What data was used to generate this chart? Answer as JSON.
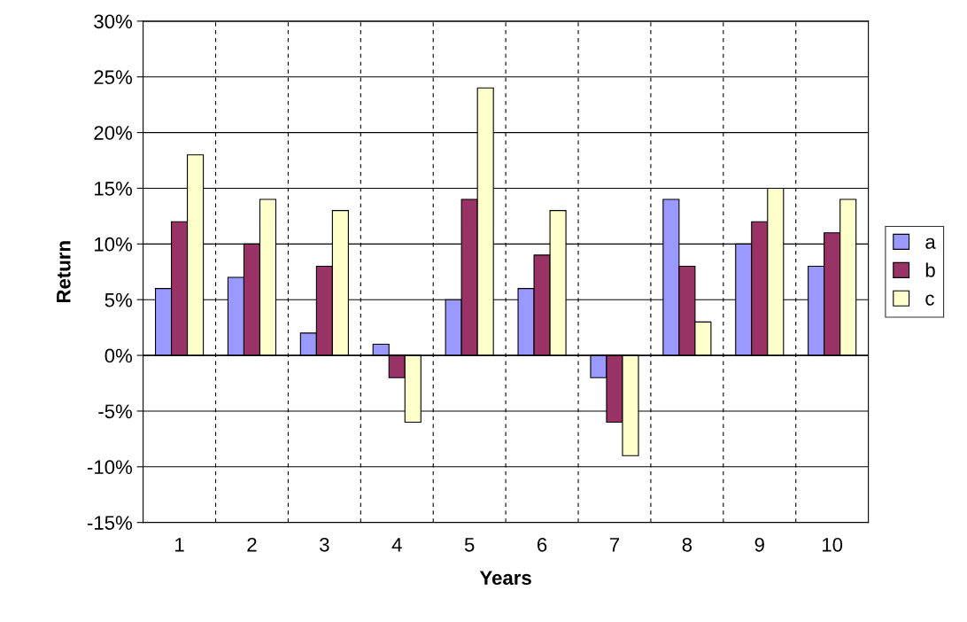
{
  "chart_data": {
    "type": "bar",
    "xlabel": "Years",
    "ylabel": "Return",
    "categories": [
      "1",
      "2",
      "3",
      "4",
      "5",
      "6",
      "7",
      "8",
      "9",
      "10"
    ],
    "series": [
      {
        "name": "a",
        "color": "#9999ff",
        "values": [
          6,
          7,
          2,
          1,
          5,
          6,
          -2,
          14,
          10,
          8
        ]
      },
      {
        "name": "b",
        "color": "#993366",
        "values": [
          12,
          10,
          8,
          -2,
          14,
          9,
          -6,
          8,
          12,
          11
        ]
      },
      {
        "name": "c",
        "color": "#ffffcc",
        "values": [
          18,
          14,
          13,
          -6,
          24,
          13,
          -9,
          3,
          15,
          14
        ]
      }
    ],
    "ylim": [
      -15,
      30
    ],
    "yticks": [
      {
        "value": -15,
        "label": "-15%"
      },
      {
        "value": -10,
        "label": "-10%"
      },
      {
        "value": -5,
        "label": "-5%"
      },
      {
        "value": 0,
        "label": "0%"
      },
      {
        "value": 5,
        "label": "5%"
      },
      {
        "value": 10,
        "label": "10%"
      },
      {
        "value": 15,
        "label": "15%"
      },
      {
        "value": 20,
        "label": "20%"
      },
      {
        "value": 25,
        "label": "25%"
      },
      {
        "value": 30,
        "label": "30%"
      }
    ],
    "grid": true,
    "legend": "right"
  }
}
